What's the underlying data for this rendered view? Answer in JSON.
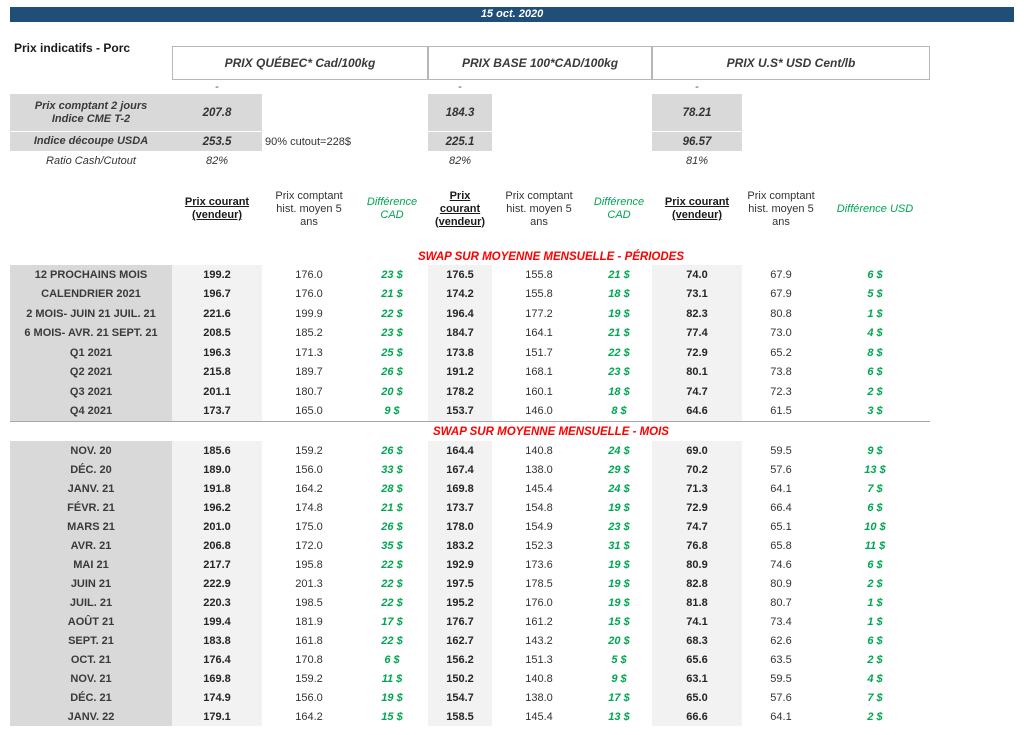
{
  "page": {
    "date": "15 oct. 2020",
    "title": "Prix indicatifs - Porc"
  },
  "group_headers": [
    "PRIX QUÉBEC* Cad/100kg",
    "PRIX BASE 100*CAD/100kg",
    "PRIX U.S* USD Cent/lb"
  ],
  "dashes": [
    "-",
    "-",
    "-"
  ],
  "spot": {
    "rows": [
      {
        "label": "Prix comptant 2 jours\nIndice CME T-2",
        "qc": "207.8",
        "base": "184.3",
        "us": "78.21",
        "note": ""
      },
      {
        "label": "Indice découpe USDA",
        "qc": "253.5",
        "base": "225.1",
        "us": "96.57",
        "note": "90% cutout=228$"
      },
      {
        "label": "Ratio Cash/Cutout",
        "qc": "82%",
        "base": "82%",
        "us": "81%",
        "note": ""
      }
    ]
  },
  "column_headers": {
    "current": "Prix courant (vendeur)",
    "hist": "Prix comptant hist. moyen 5 ans",
    "diff_cad": "Différence CAD",
    "diff_usd": "Différence USD"
  },
  "sections": [
    {
      "title": "SWAP SUR MOYENNE MENSUELLE - PÉRIODES",
      "rows": [
        [
          "12 PROCHAINS MOIS",
          "199.2",
          "176.0",
          "23 $",
          "176.5",
          "155.8",
          "21 $",
          "74.0",
          "67.9",
          "6 $"
        ],
        [
          "CALENDRIER 2021",
          "196.7",
          "176.0",
          "21 $",
          "174.2",
          "155.8",
          "18 $",
          "73.1",
          "67.9",
          "5 $"
        ],
        [
          "2 MOIS- JUIN 21 JUIL. 21",
          "221.6",
          "199.9",
          "22 $",
          "196.4",
          "177.2",
          "19 $",
          "82.3",
          "80.8",
          "1 $"
        ],
        [
          "6 MOIS- AVR. 21 SEPT. 21",
          "208.5",
          "185.2",
          "23 $",
          "184.7",
          "164.1",
          "21 $",
          "77.4",
          "73.0",
          "4 $"
        ],
        [
          "Q1 2021",
          "196.3",
          "171.3",
          "25 $",
          "173.8",
          "151.7",
          "22 $",
          "72.9",
          "65.2",
          "8 $"
        ],
        [
          "Q2 2021",
          "215.8",
          "189.7",
          "26 $",
          "191.2",
          "168.1",
          "23 $",
          "80.1",
          "73.8",
          "6 $"
        ],
        [
          "Q3 2021",
          "201.1",
          "180.7",
          "20 $",
          "178.2",
          "160.1",
          "18 $",
          "74.7",
          "72.3",
          "2 $"
        ],
        [
          "Q4 2021",
          "173.7",
          "165.0",
          "9 $",
          "153.7",
          "146.0",
          "8 $",
          "64.6",
          "61.5",
          "3 $"
        ]
      ]
    },
    {
      "title": "SWAP SUR MOYENNE MENSUELLE - MOIS",
      "rows": [
        [
          "NOV. 20",
          "185.6",
          "159.2",
          "26 $",
          "164.4",
          "140.8",
          "24 $",
          "69.0",
          "59.5",
          "9 $"
        ],
        [
          "DÉC. 20",
          "189.0",
          "156.0",
          "33 $",
          "167.4",
          "138.0",
          "29 $",
          "70.2",
          "57.6",
          "13 $"
        ],
        [
          "JANV. 21",
          "191.8",
          "164.2",
          "28 $",
          "169.8",
          "145.4",
          "24 $",
          "71.3",
          "64.1",
          "7 $"
        ],
        [
          "FÉVR. 21",
          "196.2",
          "174.8",
          "21 $",
          "173.7",
          "154.8",
          "19 $",
          "72.9",
          "66.4",
          "6 $"
        ],
        [
          "MARS 21",
          "201.0",
          "175.0",
          "26 $",
          "178.0",
          "154.9",
          "23 $",
          "74.7",
          "65.1",
          "10 $"
        ],
        [
          "AVR. 21",
          "206.8",
          "172.0",
          "35 $",
          "183.2",
          "152.3",
          "31 $",
          "76.8",
          "65.8",
          "11 $"
        ],
        [
          "MAI 21",
          "217.7",
          "195.8",
          "22 $",
          "192.9",
          "173.6",
          "19 $",
          "80.9",
          "74.6",
          "6 $"
        ],
        [
          "JUIN 21",
          "222.9",
          "201.3",
          "22 $",
          "197.5",
          "178.5",
          "19 $",
          "82.8",
          "80.9",
          "2 $"
        ],
        [
          "JUIL. 21",
          "220.3",
          "198.5",
          "22 $",
          "195.2",
          "176.0",
          "19 $",
          "81.8",
          "80.7",
          "1 $"
        ],
        [
          "AOÛT 21",
          "199.4",
          "181.9",
          "17 $",
          "176.7",
          "161.2",
          "15 $",
          "74.1",
          "73.4",
          "1 $"
        ],
        [
          "SEPT. 21",
          "183.8",
          "161.8",
          "22 $",
          "162.7",
          "143.2",
          "20 $",
          "68.3",
          "62.6",
          "6 $"
        ],
        [
          "OCT. 21",
          "176.4",
          "170.8",
          "6 $",
          "156.2",
          "151.3",
          "5 $",
          "65.6",
          "63.5",
          "2 $"
        ],
        [
          "NOV. 21",
          "169.8",
          "159.2",
          "11 $",
          "150.2",
          "140.8",
          "9 $",
          "63.1",
          "59.5",
          "4 $"
        ],
        [
          "DÉC. 21",
          "174.9",
          "156.0",
          "19 $",
          "154.7",
          "138.0",
          "17 $",
          "65.0",
          "57.6",
          "7 $"
        ],
        [
          "JANV. 22",
          "179.1",
          "164.2",
          "15 $",
          "158.5",
          "145.4",
          "13 $",
          "66.6",
          "64.1",
          "2 $"
        ]
      ]
    }
  ],
  "colors": {
    "banner_blue": "#1f4e79",
    "label_gray": "#d9d9d9",
    "current_gray": "#f2f2f2",
    "diff_green": "#00a651",
    "section_red": "#ff0000"
  }
}
